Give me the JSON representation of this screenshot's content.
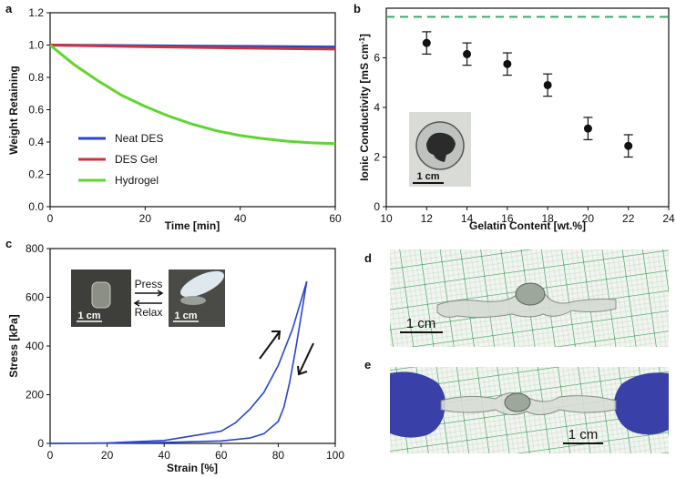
{
  "chart_data": [
    {
      "panel": "a",
      "type": "line",
      "xlabel": "Time [min]",
      "ylabel": "Weight Retaining",
      "xlim": [
        0,
        60
      ],
      "ylim": [
        0,
        1.2
      ],
      "xticks": [
        "0",
        "20",
        "40",
        "60"
      ],
      "yticks": [
        "0.0",
        "0.2",
        "0.4",
        "0.6",
        "0.8",
        "1.0",
        "1.2"
      ],
      "legend_position": "bottom-left",
      "series": [
        {
          "name": "Neat DES",
          "color": "#2a45c9",
          "x": [
            0,
            10,
            20,
            30,
            40,
            50,
            60
          ],
          "y": [
            1.0,
            0.998,
            0.996,
            0.994,
            0.992,
            0.99,
            0.988
          ]
        },
        {
          "name": "DES Gel",
          "color": "#c9343e",
          "x": [
            0,
            10,
            20,
            30,
            40,
            50,
            60
          ],
          "y": [
            1.0,
            0.995,
            0.99,
            0.986,
            0.982,
            0.978,
            0.975
          ]
        },
        {
          "name": "Hydrogel",
          "color": "#5fd62f",
          "x": [
            0,
            5,
            10,
            15,
            20,
            25,
            30,
            35,
            40,
            45,
            50,
            55,
            60
          ],
          "y": [
            1.0,
            0.88,
            0.78,
            0.69,
            0.62,
            0.56,
            0.51,
            0.47,
            0.44,
            0.42,
            0.405,
            0.395,
            0.39
          ]
        }
      ]
    },
    {
      "panel": "b",
      "type": "scatter",
      "xlabel": "Gelatin Content [wt.%]",
      "ylabel": "Ionic Conductivity [mS cm-1]",
      "xlim": [
        10,
        24
      ],
      "ylim": [
        0,
        8
      ],
      "xticks": [
        "10",
        "12",
        "14",
        "16",
        "18",
        "20",
        "22",
        "24"
      ],
      "yticks": [
        "0",
        "2",
        "4",
        "6"
      ],
      "reference_line": {
        "y": 7.65,
        "color": "#3aaa6e",
        "style": "dashed"
      },
      "series": [
        {
          "x": [
            12,
            14,
            16,
            18,
            20,
            22
          ],
          "y": [
            6.6,
            6.15,
            5.75,
            4.9,
            3.15,
            2.45
          ],
          "error": [
            0.45,
            0.45,
            0.45,
            0.45,
            0.45,
            0.45
          ]
        }
      ],
      "inset": {
        "scale_label": "1 cm"
      }
    },
    {
      "panel": "c",
      "type": "line",
      "xlabel": "Strain [%]",
      "ylabel": "Stress [kPa]",
      "xlim": [
        0,
        100
      ],
      "ylim": [
        0,
        800
      ],
      "xticks": [
        "0",
        "20",
        "40",
        "60",
        "80",
        "100"
      ],
      "yticks": [
        "0",
        "200",
        "400",
        "600",
        "800"
      ],
      "series": [
        {
          "label": "loading",
          "color": "#2a45c9",
          "x": [
            0,
            20,
            40,
            60,
            65,
            70,
            75,
            80,
            85,
            90
          ],
          "y": [
            0,
            2,
            12,
            50,
            85,
            140,
            210,
            320,
            470,
            665
          ]
        },
        {
          "label": "unloading",
          "color": "#2a45c9",
          "x": [
            90,
            88,
            86,
            84,
            82,
            80,
            75,
            70,
            60,
            40,
            20,
            0
          ],
          "y": [
            665,
            520,
            380,
            250,
            150,
            90,
            40,
            22,
            10,
            4,
            1,
            0
          ]
        }
      ],
      "inset": {
        "press_label": "Press",
        "relax_label": "Relax",
        "scale_left": "1 cm",
        "scale_right": "1 cm"
      }
    }
  ],
  "panels": {
    "a": "a",
    "b": "b",
    "c": "c",
    "d": "d",
    "e": "e"
  },
  "photo_d": {
    "scale_label": "1 cm"
  },
  "photo_e": {
    "scale_label": "1 cm"
  }
}
